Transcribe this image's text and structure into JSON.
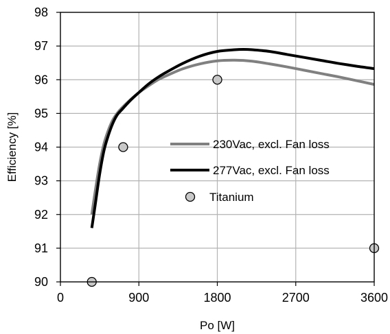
{
  "chart_data": {
    "type": "line",
    "title": "",
    "xlabel": "Po [W]",
    "ylabel": "Efficiency [%]",
    "xlim": [
      0,
      3600
    ],
    "ylim": [
      90,
      98
    ],
    "xticks": [
      0,
      900,
      1800,
      2700,
      3600
    ],
    "yticks": [
      90,
      91,
      92,
      93,
      94,
      95,
      96,
      97,
      98
    ],
    "grid": true,
    "legend_position": "center-right",
    "series": [
      {
        "name": "230Vac, excl. Fan loss",
        "kind": "line",
        "color": "#808080",
        "x": [
          360,
          400,
          450,
          500,
          550,
          600,
          650,
          700,
          800,
          900,
          1000,
          1100,
          1200,
          1400,
          1600,
          1800,
          2000,
          2200,
          2400,
          2600,
          2800,
          3000,
          3200,
          3400,
          3600
        ],
        "y": [
          92.0,
          92.7,
          93.5,
          94.1,
          94.5,
          94.8,
          95.0,
          95.15,
          95.4,
          95.62,
          95.8,
          95.97,
          96.1,
          96.32,
          96.47,
          96.56,
          96.58,
          96.55,
          96.47,
          96.38,
          96.28,
          96.18,
          96.08,
          95.97,
          95.86
        ]
      },
      {
        "name": "277Vac, excl. Fan loss",
        "kind": "line",
        "color": "#000000",
        "x": [
          360,
          400,
          450,
          500,
          550,
          600,
          650,
          700,
          800,
          900,
          1000,
          1100,
          1200,
          1400,
          1600,
          1800,
          2000,
          2100,
          2200,
          2400,
          2600,
          2800,
          3000,
          3200,
          3400,
          3600
        ],
        "y": [
          91.6,
          92.3,
          93.2,
          93.9,
          94.35,
          94.7,
          94.95,
          95.1,
          95.38,
          95.62,
          95.85,
          96.04,
          96.2,
          96.48,
          96.7,
          96.84,
          96.89,
          96.9,
          96.89,
          96.84,
          96.75,
          96.66,
          96.57,
          96.48,
          96.4,
          96.33
        ]
      },
      {
        "name": "Titanium",
        "kind": "scatter",
        "color": "#c8c8c8",
        "x": [
          360,
          720,
          1800,
          3600
        ],
        "y": [
          90,
          94,
          96,
          91
        ]
      }
    ]
  }
}
